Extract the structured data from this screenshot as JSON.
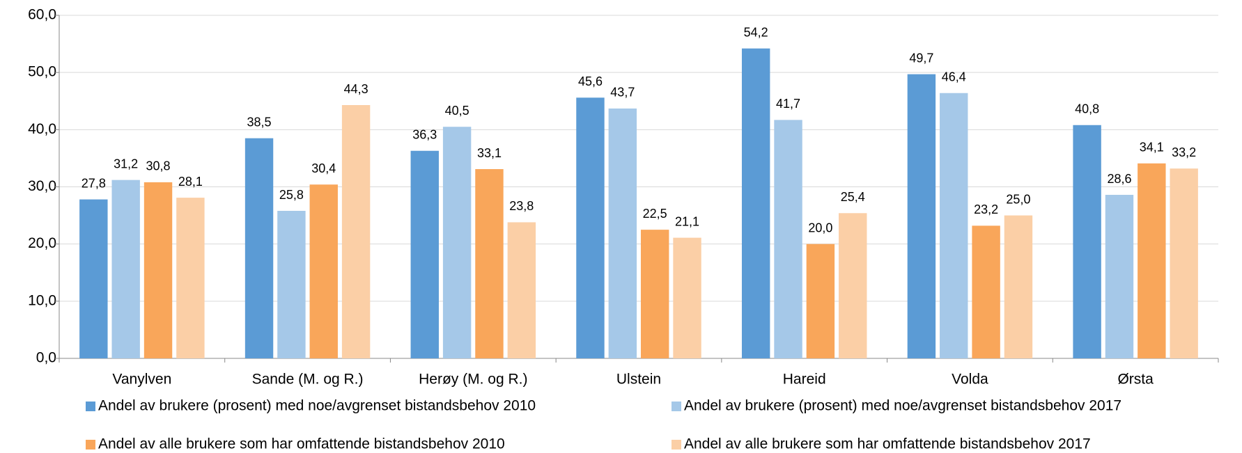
{
  "chart_data": {
    "type": "bar",
    "categories": [
      "Vanylven",
      "Sande (M. og R.)",
      "Herøy (M. og R.)",
      "Ulstein",
      "Hareid",
      "Volda",
      "Ørsta"
    ],
    "series": [
      {
        "name": "Andel av brukere (prosent) med noe/avgrenset bistandsbehov 2010",
        "color": "#5b9bd5",
        "values": [
          27.8,
          38.5,
          36.3,
          45.6,
          54.2,
          49.7,
          40.8
        ],
        "value_labels": [
          "27,8",
          "38,5",
          "36,3",
          "45,6",
          "54,2",
          "49,7",
          "40,8"
        ]
      },
      {
        "name": "Andel av brukere (prosent) med noe/avgrenset bistandsbehov 2017",
        "color": "#a5c8e8",
        "values": [
          31.2,
          25.8,
          40.5,
          43.7,
          41.7,
          46.4,
          28.6
        ],
        "value_labels": [
          "31,2",
          "25,8",
          "40,5",
          "43,7",
          "41,7",
          "46,4",
          "28,6"
        ]
      },
      {
        "name": "Andel av alle brukere som har omfattende bistandsbehov 2010",
        "color": "#f9a65a",
        "values": [
          30.8,
          30.4,
          33.1,
          22.5,
          20.0,
          23.2,
          34.1
        ],
        "value_labels": [
          "30,8",
          "30,4",
          "33,1",
          "22,5",
          "20,0",
          "23,2",
          "34,1"
        ]
      },
      {
        "name": "Andel av alle brukere som har omfattende bistandsbehov 2017",
        "color": "#fbcfa6",
        "values": [
          28.1,
          44.3,
          23.8,
          21.1,
          25.4,
          25.0,
          33.2
        ],
        "value_labels": [
          "28,1",
          "44,3",
          "23,8",
          "21,1",
          "25,4",
          "25,0",
          "33,2"
        ]
      }
    ],
    "ylim": [
      0,
      60
    ],
    "yticks": [
      {
        "value": 0,
        "label": "0,0"
      },
      {
        "value": 10,
        "label": "10,0"
      },
      {
        "value": 20,
        "label": "20,0"
      },
      {
        "value": 30,
        "label": "30,0"
      },
      {
        "value": 40,
        "label": "40,0"
      },
      {
        "value": 50,
        "label": "50,0"
      },
      {
        "value": 60,
        "label": "60,0"
      }
    ],
    "grid": true
  }
}
